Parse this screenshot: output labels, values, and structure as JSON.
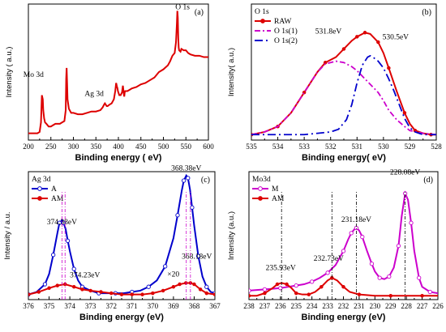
{
  "chart_data": [
    {
      "id": "a",
      "type": "line",
      "panel_label": "(a)",
      "xlabel": "Binding energy ( eV)",
      "ylabel": "Intensity ( a.u.)",
      "xlim": [
        200,
        600
      ],
      "ylim": [
        0,
        1
      ],
      "x_ticks": [
        200,
        250,
        300,
        350,
        400,
        450,
        500,
        550,
        600
      ],
      "color": "#dd0000",
      "annotations": [
        {
          "text": "O 1s",
          "x": 532,
          "y": 0.95
        },
        {
          "text": "Mo 3d",
          "x": 232,
          "y": 0.43
        },
        {
          "text": "Ag 3d",
          "x": 370,
          "y": 0.3
        }
      ],
      "series": [
        {
          "x": [
            200,
            210,
            220,
            225,
            228,
            230,
            232,
            233,
            235,
            237,
            240,
            245,
            250,
            255,
            260,
            265,
            270,
            275,
            280,
            283,
            284,
            285,
            286,
            287,
            290,
            295,
            300,
            310,
            320,
            330,
            340,
            350,
            360,
            365,
            368,
            370,
            372,
            374,
            376,
            380,
            385,
            390,
            393,
            395,
            397,
            398,
            399,
            400,
            402,
            405,
            408,
            410,
            412,
            413,
            414,
            415,
            417,
            420,
            425,
            430,
            440,
            450,
            460,
            470,
            480,
            490,
            500,
            510,
            515,
            520,
            525,
            528,
            530,
            531,
            532,
            533,
            534,
            535,
            538,
            540,
            545,
            550,
            555,
            560,
            570,
            580,
            590,
            600
          ],
          "y": [
            0.05,
            0.05,
            0.05,
            0.06,
            0.13,
            0.33,
            0.3,
            0.22,
            0.16,
            0.13,
            0.12,
            0.1,
            0.1,
            0.11,
            0.12,
            0.12,
            0.12,
            0.13,
            0.14,
            0.22,
            0.45,
            0.53,
            0.42,
            0.3,
            0.23,
            0.2,
            0.2,
            0.19,
            0.19,
            0.2,
            0.21,
            0.21,
            0.22,
            0.24,
            0.26,
            0.27,
            0.26,
            0.25,
            0.25,
            0.26,
            0.27,
            0.3,
            0.36,
            0.42,
            0.39,
            0.38,
            0.36,
            0.35,
            0.33,
            0.33,
            0.35,
            0.4,
            0.34,
            0.32,
            0.35,
            0.36,
            0.36,
            0.36,
            0.37,
            0.38,
            0.39,
            0.41,
            0.42,
            0.44,
            0.46,
            0.5,
            0.52,
            0.55,
            0.58,
            0.62,
            0.64,
            0.72,
            0.86,
            0.95,
            0.9,
            0.75,
            0.68,
            0.66,
            0.65,
            0.67,
            0.66,
            0.66,
            0.64,
            0.63,
            0.62,
            0.62,
            0.61,
            0.61
          ]
        }
      ]
    },
    {
      "id": "b",
      "type": "line",
      "panel_label": "(b)",
      "title": "O 1s",
      "xlabel": "Binding energy( eV)",
      "ylabel": "Intensity( a.u.)",
      "xlim": [
        535,
        528
      ],
      "ylim": [
        0,
        1
      ],
      "x_ticks": [
        535,
        534,
        533,
        532,
        531,
        530,
        529,
        528
      ],
      "annotations": [
        {
          "text": "531.8eV",
          "x": 531.9,
          "y": 0.76
        },
        {
          "text": "530.5eV",
          "x": 530.1,
          "y": 0.71
        }
      ],
      "series": [
        {
          "name": "RAW",
          "color": "#dd0000",
          "style": "solid-dots",
          "x": [
            535,
            534.5,
            534,
            533.5,
            533,
            532.5,
            532.2,
            531.8,
            531.5,
            531.2,
            531,
            530.8,
            530.7,
            530.5,
            530.2,
            530,
            529.8,
            529.5,
            529.2,
            529,
            528.8,
            528.5,
            528.2,
            528
          ],
          "y": [
            0.04,
            0.06,
            0.1,
            0.2,
            0.35,
            0.5,
            0.57,
            0.61,
            0.67,
            0.73,
            0.76,
            0.78,
            0.79,
            0.78,
            0.72,
            0.64,
            0.53,
            0.36,
            0.2,
            0.12,
            0.07,
            0.05,
            0.04,
            0.04
          ]
        },
        {
          "name": "O 1s(1)",
          "color": "#cc00cc",
          "style": "dash-dot",
          "x": [
            535,
            534.5,
            534,
            533.5,
            533,
            532.5,
            532.2,
            531.8,
            531.5,
            531.2,
            531,
            530.7,
            530.5,
            530.2,
            530,
            529.8,
            529.5,
            529.2,
            529,
            528.5,
            528
          ],
          "y": [
            0.04,
            0.06,
            0.1,
            0.2,
            0.35,
            0.5,
            0.56,
            0.58,
            0.57,
            0.54,
            0.51,
            0.45,
            0.41,
            0.35,
            0.29,
            0.22,
            0.15,
            0.1,
            0.07,
            0.05,
            0.04
          ]
        },
        {
          "name": "O 1s(2)",
          "color": "#0000cc",
          "style": "dash-dot-long",
          "x": [
            535,
            533,
            532.5,
            532,
            531.7,
            531.4,
            531.2,
            531,
            530.8,
            530.6,
            530.5,
            530.4,
            530.2,
            530,
            529.8,
            529.6,
            529.4,
            529.2,
            529,
            528.8,
            528.5,
            528
          ],
          "y": [
            0.04,
            0.04,
            0.05,
            0.06,
            0.08,
            0.15,
            0.26,
            0.42,
            0.55,
            0.61,
            0.62,
            0.61,
            0.58,
            0.53,
            0.45,
            0.36,
            0.26,
            0.16,
            0.09,
            0.06,
            0.04,
            0.04
          ]
        }
      ]
    },
    {
      "id": "c",
      "type": "line",
      "panel_label": "(c)",
      "title": "Ag 3d",
      "xlabel": "Binding energy (eV)",
      "ylabel": "Intensity / a.u.",
      "xlim": [
        376,
        367
      ],
      "ylim": [
        0,
        1
      ],
      "x_ticks": [
        376,
        375,
        374,
        373,
        372,
        371,
        370,
        369,
        368,
        367
      ],
      "annotations": [
        {
          "text": "374.38eV",
          "x": 374.38,
          "y": 0.57
        },
        {
          "text": "368.38eV",
          "x": 368.38,
          "y": 0.99
        },
        {
          "text": "374.23eV",
          "x": 374.0,
          "y": 0.16
        },
        {
          "text": "368.18eV",
          "x": 368.6,
          "y": 0.3
        },
        {
          "text": "×20",
          "x": 369.3,
          "y": 0.18
        }
      ],
      "series": [
        {
          "name": "A",
          "color": "#0000cc",
          "style": "solid-open-circles",
          "x": [
            376,
            375.6,
            375.2,
            375,
            374.8,
            374.6,
            374.5,
            374.38,
            374.3,
            374.2,
            374.1,
            374,
            373.8,
            373.6,
            373.4,
            373,
            372.6,
            372.2,
            371.8,
            371.4,
            371,
            370.6,
            370.2,
            369.8,
            369.4,
            369,
            368.8,
            368.6,
            368.5,
            368.38,
            368.3,
            368.2,
            368.1,
            368,
            367.8,
            367.6,
            367.4,
            367.2,
            367
          ],
          "y": [
            0.04,
            0.06,
            0.12,
            0.2,
            0.35,
            0.52,
            0.6,
            0.62,
            0.6,
            0.55,
            0.46,
            0.38,
            0.24,
            0.15,
            0.1,
            0.07,
            0.05,
            0.05,
            0.05,
            0.05,
            0.06,
            0.07,
            0.1,
            0.15,
            0.26,
            0.48,
            0.66,
            0.85,
            0.93,
            0.97,
            0.95,
            0.86,
            0.72,
            0.58,
            0.34,
            0.18,
            0.1,
            0.06,
            0.05
          ]
        },
        {
          "name": "AM",
          "color": "#dd0000",
          "style": "solid-stars",
          "x": [
            376,
            375.5,
            375,
            374.6,
            374.23,
            373.8,
            373.4,
            373,
            372.5,
            372,
            371.5,
            371,
            370.5,
            370,
            369.5,
            369,
            368.7,
            368.4,
            368.18,
            368,
            367.7,
            367.4,
            367
          ],
          "y": [
            0.04,
            0.06,
            0.09,
            0.11,
            0.12,
            0.1,
            0.08,
            0.07,
            0.06,
            0.05,
            0.04,
            0.04,
            0.04,
            0.05,
            0.07,
            0.1,
            0.12,
            0.13,
            0.13,
            0.12,
            0.08,
            0.05,
            0.04
          ]
        }
      ]
    },
    {
      "id": "d",
      "type": "line",
      "panel_label": "(d)",
      "title": "Mo3d",
      "xlabel": "Binding energy (eV)",
      "ylabel": "Intensity (a.u.)",
      "xlim": [
        238,
        226
      ],
      "ylim": [
        0,
        1
      ],
      "x_ticks": [
        238,
        237,
        236,
        235,
        234,
        233,
        232,
        231,
        230,
        229,
        228,
        227,
        226
      ],
      "annotations": [
        {
          "text": "228.08eV",
          "x": 228.08,
          "y": 0.96
        },
        {
          "text": "231.18eV",
          "x": 231.18,
          "y": 0.59
        },
        {
          "text": "232.73eV",
          "x": 232.73,
          "y": 0.28
        },
        {
          "text": "235.93eV",
          "x": 235.93,
          "y": 0.2
        }
      ],
      "series": [
        {
          "name": "M",
          "color": "#cc00cc",
          "style": "solid-open-circles",
          "x": [
            238,
            237.5,
            237,
            236.5,
            236,
            235.5,
            235,
            234.5,
            234,
            233.5,
            233,
            232.5,
            232,
            231.7,
            231.5,
            231.3,
            231.18,
            231,
            230.8,
            230.5,
            230.2,
            230,
            229.7,
            229.4,
            229.1,
            228.8,
            228.5,
            228.3,
            228.08,
            227.9,
            227.7,
            227.5,
            227.2,
            227,
            226.5,
            226
          ],
          "y": [
            0.07,
            0.075,
            0.08,
            0.085,
            0.09,
            0.1,
            0.11,
            0.12,
            0.14,
            0.17,
            0.21,
            0.27,
            0.38,
            0.47,
            0.52,
            0.55,
            0.56,
            0.54,
            0.49,
            0.38,
            0.28,
            0.22,
            0.17,
            0.16,
            0.18,
            0.25,
            0.42,
            0.65,
            0.83,
            0.78,
            0.6,
            0.38,
            0.17,
            0.1,
            0.06,
            0.05
          ]
        },
        {
          "name": "AM",
          "color": "#dd0000",
          "style": "solid-dots",
          "x": [
            238,
            237.5,
            237,
            236.5,
            236.2,
            235.93,
            235.6,
            235.3,
            235,
            234.6,
            234.2,
            233.8,
            233.4,
            233,
            232.73,
            232.4,
            232,
            231.6,
            231,
            230,
            229,
            228,
            227,
            226
          ],
          "y": [
            0.03,
            0.03,
            0.05,
            0.09,
            0.12,
            0.13,
            0.12,
            0.09,
            0.05,
            0.04,
            0.04,
            0.06,
            0.1,
            0.15,
            0.17,
            0.15,
            0.1,
            0.06,
            0.04,
            0.03,
            0.03,
            0.03,
            0.03,
            0.03
          ]
        }
      ]
    }
  ]
}
